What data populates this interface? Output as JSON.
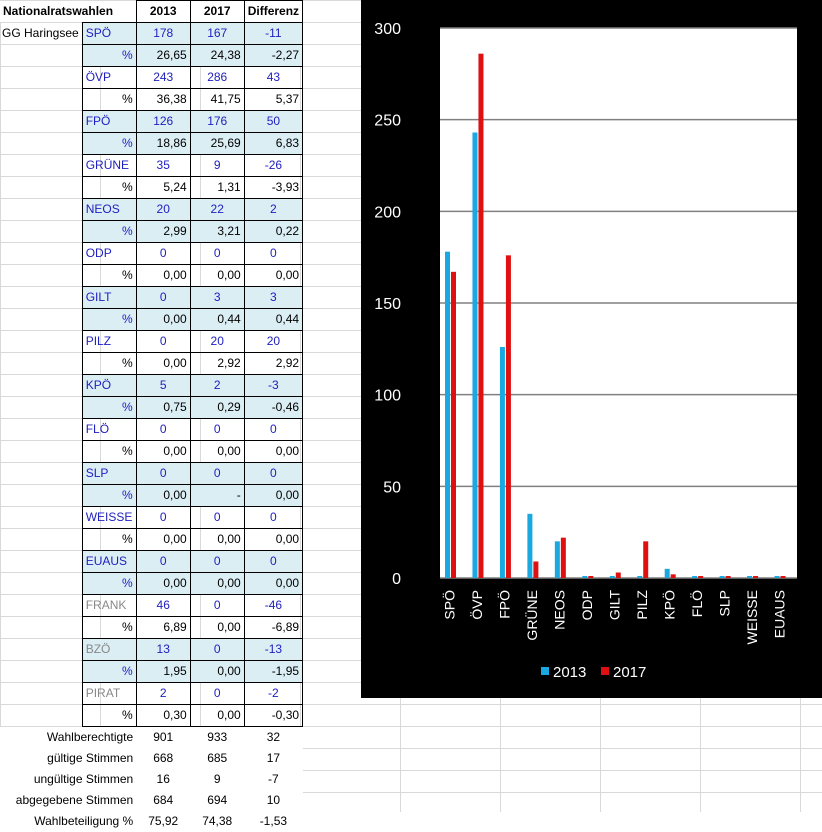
{
  "sheet": {
    "header": {
      "title": "Nationalratswahlen",
      "col_2013": "2013",
      "col_2017": "2017",
      "col_diff": "Differenz"
    },
    "location": "GG Haringsee",
    "pct_label": "%",
    "rows": [
      {
        "party": "SPÖ",
        "v2013": "178",
        "v2017": "167",
        "diff": "-11",
        "p2013": "26,65",
        "p2017": "24,38",
        "pdiff": "-2,27"
      },
      {
        "party": "ÖVP",
        "v2013": "243",
        "v2017": "286",
        "diff": "43",
        "p2013": "36,38",
        "p2017": "41,75",
        "pdiff": "5,37"
      },
      {
        "party": "FPÖ",
        "v2013": "126",
        "v2017": "176",
        "diff": "50",
        "p2013": "18,86",
        "p2017": "25,69",
        "pdiff": "6,83"
      },
      {
        "party": "GRÜNE",
        "v2013": "35",
        "v2017": "9",
        "diff": "-26",
        "p2013": "5,24",
        "p2017": "1,31",
        "pdiff": "-3,93"
      },
      {
        "party": "NEOS",
        "v2013": "20",
        "v2017": "22",
        "diff": "2",
        "p2013": "2,99",
        "p2017": "3,21",
        "pdiff": "0,22"
      },
      {
        "party": "ODP",
        "v2013": "0",
        "v2017": "0",
        "diff": "0",
        "p2013": "0,00",
        "p2017": "0,00",
        "pdiff": "0,00"
      },
      {
        "party": "GILT",
        "v2013": "0",
        "v2017": "3",
        "diff": "3",
        "p2013": "0,00",
        "p2017": "0,44",
        "pdiff": "0,44"
      },
      {
        "party": "PILZ",
        "v2013": "0",
        "v2017": "20",
        "diff": "20",
        "p2013": "0,00",
        "p2017": "2,92",
        "pdiff": "2,92"
      },
      {
        "party": "KPÖ",
        "v2013": "5",
        "v2017": "2",
        "diff": "-3",
        "p2013": "0,75",
        "p2017": "0,29",
        "pdiff": "-0,46"
      },
      {
        "party": "FLÖ",
        "v2013": "0",
        "v2017": "0",
        "diff": "0",
        "p2013": "0,00",
        "p2017": "0,00",
        "pdiff": "0,00"
      },
      {
        "party": "SLP",
        "v2013": "0",
        "v2017": "0",
        "diff": "0",
        "p2013": "0,00",
        "p2017": "-",
        "pdiff": "0,00"
      },
      {
        "party": "WEISSE",
        "v2013": "0",
        "v2017": "0",
        "diff": "0",
        "p2013": "0,00",
        "p2017": "0,00",
        "pdiff": "0,00"
      },
      {
        "party": "EUAUS",
        "v2013": "0",
        "v2017": "0",
        "diff": "0",
        "p2013": "0,00",
        "p2017": "0,00",
        "pdiff": "0,00"
      },
      {
        "party": "FRANK",
        "v2013": "46",
        "v2017": "0",
        "diff": "-46",
        "p2013": "6,89",
        "p2017": "0,00",
        "pdiff": "-6,89"
      },
      {
        "party": "BZÖ",
        "v2013": "13",
        "v2017": "0",
        "diff": "-13",
        "p2013": "1,95",
        "p2017": "0,00",
        "pdiff": "-1,95"
      },
      {
        "party": "PIRAT",
        "v2013": "2",
        "v2017": "0",
        "diff": "-2",
        "p2013": "0,30",
        "p2017": "0,00",
        "pdiff": "-0,30"
      }
    ],
    "footer": [
      {
        "label": "Wahlberechtigte",
        "v2013": "901",
        "v2017": "933",
        "diff": "32"
      },
      {
        "label": "gültige Stimmen",
        "v2013": "668",
        "v2017": "685",
        "diff": "17"
      },
      {
        "label": "ungültige Stimmen",
        "v2013": "16",
        "v2017": "9",
        "diff": "-7"
      },
      {
        "label": "abgegebene Stimmen",
        "v2013": "684",
        "v2017": "694",
        "diff": "10"
      },
      {
        "label": "Wahlbeteiligung %",
        "v2013": "75,92",
        "v2017": "74,38",
        "diff": "-1,53"
      }
    ]
  },
  "colors": {
    "series_2013": "#1aa8e0",
    "series_2017": "#e01010",
    "chart_bg": "#000000",
    "plot_bg": "#ffffff",
    "shade": "#dbeef4",
    "party_text": "#2020c0",
    "party_text_grey": "#888888"
  },
  "chart_data": {
    "type": "bar",
    "categories": [
      "SPÖ",
      "ÖVP",
      "FPÖ",
      "GRÜNE",
      "NEOS",
      "ODP",
      "GILT",
      "PILZ",
      "KPÖ",
      "FLÖ",
      "SLP",
      "WEISSE",
      "EUAUS"
    ],
    "series": [
      {
        "name": "2013",
        "values": [
          178,
          243,
          126,
          35,
          20,
          0,
          0,
          0,
          5,
          0,
          0,
          0,
          0
        ]
      },
      {
        "name": "2017",
        "values": [
          167,
          286,
          176,
          9,
          22,
          0,
          3,
          20,
          2,
          0,
          0,
          0,
          0
        ]
      }
    ],
    "ylim": [
      0,
      300
    ],
    "yticks": [
      "0",
      "50",
      "100",
      "150",
      "200",
      "250",
      "300"
    ],
    "grid": true,
    "legend": "bottom"
  }
}
